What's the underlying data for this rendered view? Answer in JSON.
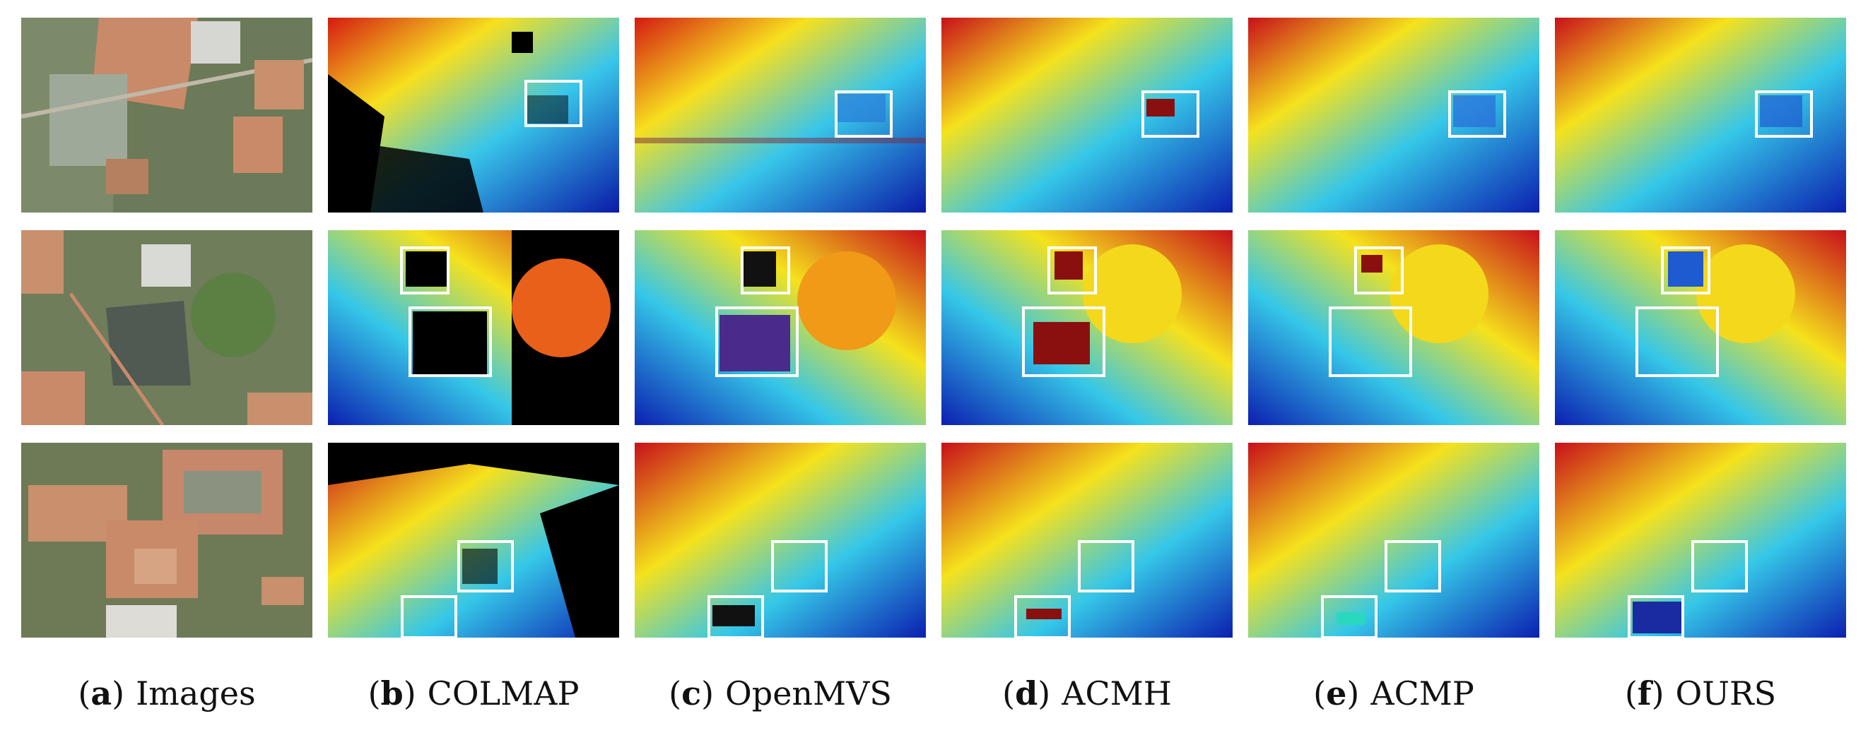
{
  "figure": {
    "captions": [
      {
        "letter": "a",
        "name": "Images"
      },
      {
        "letter": "b",
        "name": "COLMAP"
      },
      {
        "letter": "c",
        "name": "OpenMVS"
      },
      {
        "letter": "d",
        "name": "ACMH"
      },
      {
        "letter": "e",
        "name": "ACMP"
      },
      {
        "letter": "f",
        "name": "OURS"
      }
    ],
    "rows": 3,
    "colors": {
      "depth_far": "#c8101a",
      "depth_mid": "#f5e21c",
      "depth_near_mid": "#35c7e8",
      "depth_near": "#0b1fb0",
      "invalid": "#000000",
      "box": "#ffffff"
    }
  }
}
